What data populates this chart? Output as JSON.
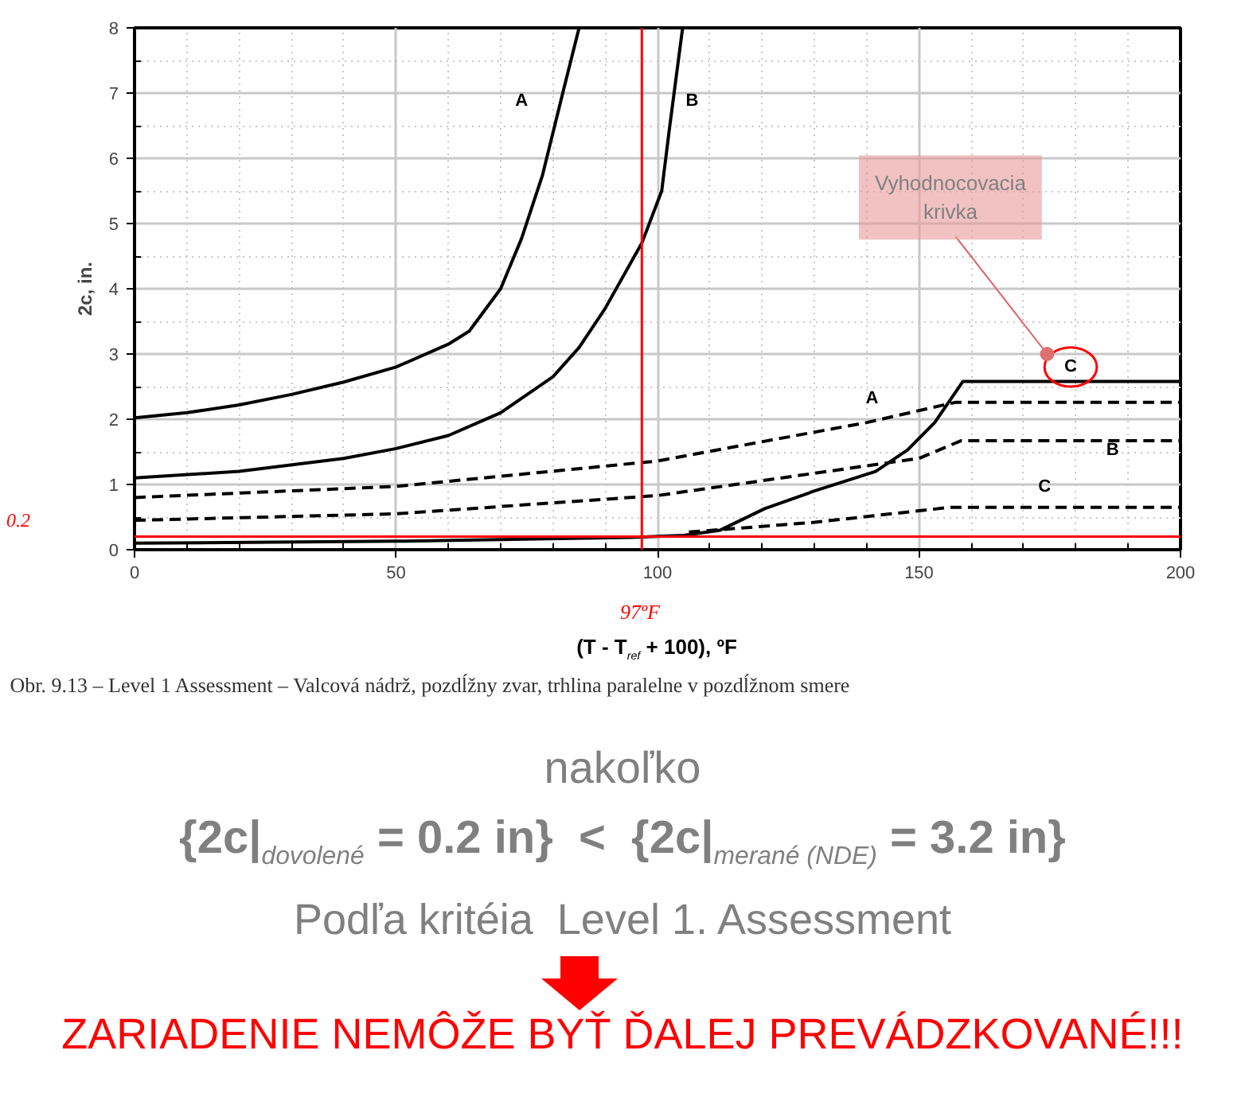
{
  "chart_data": {
    "type": "line",
    "xlabel": "(T - T$_{ref}$ + 100), ºF",
    "ylabel": "2c, in.",
    "xlim": [
      0,
      200
    ],
    "ylim": [
      0,
      8
    ],
    "xticks": [
      0,
      {
        "value": 10,
        "label": null
      },
      {
        "value": 20,
        "label": null
      },
      {
        "value": 30,
        "label": null
      },
      {
        "value": 40,
        "label": null
      },
      50,
      {
        "value": 60,
        "label": null
      },
      {
        "value": 70,
        "label": null
      },
      {
        "value": 80,
        "label": null
      },
      {
        "value": 90,
        "label": null
      },
      100,
      {
        "value": 110,
        "label": null
      },
      {
        "value": 120,
        "label": null
      },
      {
        "value": 130,
        "label": null
      },
      {
        "value": 140,
        "label": null
      },
      150,
      {
        "value": 160,
        "label": null
      },
      {
        "value": 170,
        "label": null
      },
      {
        "value": 180,
        "label": null
      },
      {
        "value": 190,
        "label": null
      },
      200
    ],
    "yticks": [
      0,
      {
        "value": 0.5,
        "label": null
      },
      1,
      {
        "value": 1.5,
        "label": null
      },
      2,
      {
        "value": 2.5,
        "label": null
      },
      3,
      {
        "value": 3.5,
        "label": null
      },
      4,
      {
        "value": 4.5,
        "label": null
      },
      5,
      {
        "value": 5.5,
        "label": null
      },
      6,
      {
        "value": 6.5,
        "label": null
      },
      7,
      {
        "value": 7.5,
        "label": null
      },
      8
    ],
    "grid": true,
    "legend": false,
    "marker": "none",
    "series": [
      {
        "name": "A",
        "color": "#000000",
        "line_style": "solid",
        "x": [
          0,
          10,
          20,
          30,
          40,
          50,
          60,
          64,
          70,
          74,
          78,
          82,
          85
        ],
        "values": [
          2.02,
          2.1,
          2.22,
          2.38,
          2.57,
          2.8,
          3.15,
          3.35,
          4.0,
          4.77,
          5.74,
          7.04,
          8.0
        ]
      },
      {
        "name": "B",
        "color": "#000000",
        "line_style": "solid",
        "x": [
          0,
          20,
          40,
          50,
          60,
          70,
          80,
          85,
          90,
          97,
          100.8,
          102.3,
          104.8
        ],
        "values": [
          1.1,
          1.2,
          1.4,
          1.55,
          1.75,
          2.1,
          2.65,
          3.1,
          3.7,
          4.7,
          5.5,
          6.47,
          8.0
        ]
      },
      {
        "name": "A",
        "color": "#000000",
        "line_style": "dashed",
        "x": [
          0,
          50,
          100,
          140,
          157,
          200
        ],
        "values": [
          0.8,
          0.97,
          1.36,
          1.95,
          2.26,
          2.26
        ]
      },
      {
        "name": "B",
        "color": "#000000",
        "line_style": "dashed",
        "x": [
          0,
          50,
          100,
          150,
          158,
          200
        ],
        "values": [
          0.45,
          0.55,
          0.83,
          1.4,
          1.67,
          1.67
        ]
      },
      {
        "name": "C",
        "color": "#000000",
        "line_style": "dashed",
        "x": [
          106,
          130,
          156,
          200
        ],
        "values": [
          0.27,
          0.42,
          0.65,
          0.65
        ]
      },
      {
        "name": "C",
        "color": "#000000",
        "line_style": "solid",
        "x": [
          0,
          50,
          95,
          105,
          112,
          120.5,
          130,
          141.7,
          147.8,
          153,
          158.4,
          200
        ],
        "values": [
          0.1,
          0.13,
          0.19,
          0.22,
          0.3,
          0.63,
          0.9,
          1.2,
          1.53,
          1.95,
          2.58,
          2.58
        ]
      }
    ],
    "ref_lines": [
      {
        "axis": "y",
        "value": 0.2,
        "label": "0.2",
        "color": "#ff0000"
      },
      {
        "axis": "x",
        "value": 97,
        "label": "97ºF",
        "color": "#ff0000"
      }
    ],
    "annotations": [
      "Vyhodnocovacia krivka",
      "Obr. 9.13 – Level 1 Assessment – Valcová nádrž, pozdĺžny zvar, trhlina paralelne v pozdĺžnom smere",
      "nakoľko",
      "{2c|$_{dovolené}$ = 0.2 in}  <  {2c|$_{merané (NDE)}$ = 3.2 in}",
      "Podľa kritéia  Level 1. Assessment",
      "ZARIADENIE NEMÔŽE BYŤ ĎALEJ PREVÁDZKOVANÉ!!!"
    ]
  }
}
